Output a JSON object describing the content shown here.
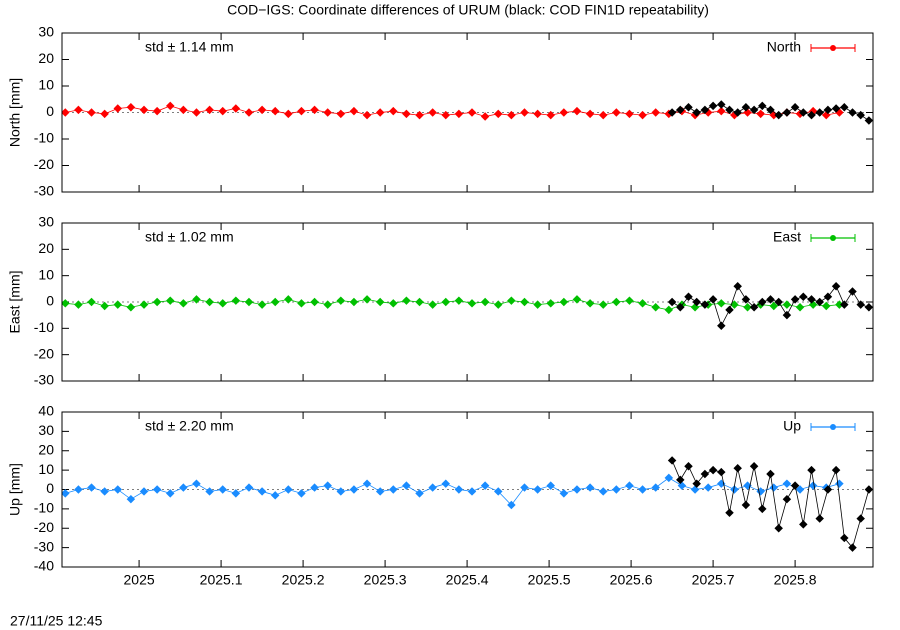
{
  "title": "COD−IGS: Coordinate differences of URUM (black: COD FIN1D repeatability)",
  "timestamp": "27/11/25 12:45",
  "chart_data": [
    {
      "type": "line",
      "ylabel": "North [mm]",
      "annotation": "std ± 1.14 mm",
      "legend": "top-right",
      "zeroline": true,
      "xlim": [
        2024.906,
        2025.895
      ],
      "xticks": [
        2025,
        2025.1,
        2025.2,
        2025.3,
        2025.4,
        2025.5,
        2025.6,
        2025.7,
        2025.8
      ],
      "ylim": [
        -30,
        30
      ],
      "yticks": [
        -30,
        -20,
        -10,
        0,
        10,
        20,
        30
      ],
      "series": [
        {
          "name": "North",
          "color": "#ff0000",
          "x": [
            2024.91,
            2024.926,
            2024.942,
            2024.958,
            2024.974,
            2024.99,
            2025.006,
            2025.022,
            2025.038,
            2025.054,
            2025.07,
            2025.086,
            2025.102,
            2025.118,
            2025.134,
            2025.15,
            2025.166,
            2025.182,
            2025.198,
            2025.214,
            2025.23,
            2025.246,
            2025.262,
            2025.278,
            2025.294,
            2025.31,
            2025.326,
            2025.342,
            2025.358,
            2025.374,
            2025.39,
            2025.406,
            2025.422,
            2025.438,
            2025.454,
            2025.47,
            2025.486,
            2025.502,
            2025.518,
            2025.534,
            2025.55,
            2025.566,
            2025.582,
            2025.598,
            2025.614,
            2025.63,
            2025.646,
            2025.662,
            2025.678,
            2025.694,
            2025.71,
            2025.726,
            2025.742,
            2025.758,
            2025.774,
            2025.79,
            2025.806,
            2025.822,
            2025.838,
            2025.854
          ],
          "values": [
            0,
            1,
            0,
            -0.5,
            1.5,
            2,
            1,
            0.5,
            2.5,
            1,
            0,
            1,
            0.5,
            1.5,
            0,
            1,
            0.5,
            -0.5,
            0.5,
            1,
            0,
            -0.5,
            0.5,
            -1,
            0,
            0.5,
            -0.5,
            -1,
            0,
            -1,
            -0.5,
            0,
            -1.5,
            -0.5,
            -1,
            0,
            -0.5,
            -1,
            0,
            0.5,
            -0.5,
            -1,
            0,
            -0.5,
            -1,
            0,
            -0.5,
            0.5,
            -1,
            0,
            0.5,
            -1,
            0,
            -0.5,
            -1,
            0,
            -0.5,
            0.5,
            -1,
            0
          ]
        },
        {
          "color": "#000000",
          "x": [
            2025.65,
            2025.66,
            2025.67,
            2025.68,
            2025.69,
            2025.7,
            2025.71,
            2025.72,
            2025.73,
            2025.74,
            2025.75,
            2025.76,
            2025.77,
            2025.78,
            2025.79,
            2025.8,
            2025.81,
            2025.82,
            2025.83,
            2025.84,
            2025.85,
            2025.86,
            2025.87,
            2025.88,
            2025.89
          ],
          "values": [
            0,
            1,
            2,
            0,
            1,
            2.5,
            3,
            1,
            0,
            2,
            1,
            2.5,
            1,
            -1,
            0,
            2,
            0,
            -1,
            0,
            1,
            1.5,
            2,
            0,
            -1,
            -3
          ]
        }
      ]
    },
    {
      "type": "line",
      "ylabel": "East [mm]",
      "annotation": "std ± 1.02 mm",
      "legend": "top-right",
      "zeroline": true,
      "xlim": [
        2024.906,
        2025.895
      ],
      "xticks": [
        2025,
        2025.1,
        2025.2,
        2025.3,
        2025.4,
        2025.5,
        2025.6,
        2025.7,
        2025.8
      ],
      "ylim": [
        -30,
        30
      ],
      "yticks": [
        -30,
        -20,
        -10,
        0,
        10,
        20,
        30
      ],
      "series": [
        {
          "name": "East",
          "color": "#00c000",
          "x": [
            2024.91,
            2024.926,
            2024.942,
            2024.958,
            2024.974,
            2024.99,
            2025.006,
            2025.022,
            2025.038,
            2025.054,
            2025.07,
            2025.086,
            2025.102,
            2025.118,
            2025.134,
            2025.15,
            2025.166,
            2025.182,
            2025.198,
            2025.214,
            2025.23,
            2025.246,
            2025.262,
            2025.278,
            2025.294,
            2025.31,
            2025.326,
            2025.342,
            2025.358,
            2025.374,
            2025.39,
            2025.406,
            2025.422,
            2025.438,
            2025.454,
            2025.47,
            2025.486,
            2025.502,
            2025.518,
            2025.534,
            2025.55,
            2025.566,
            2025.582,
            2025.598,
            2025.614,
            2025.63,
            2025.646,
            2025.662,
            2025.678,
            2025.694,
            2025.71,
            2025.726,
            2025.742,
            2025.758,
            2025.774,
            2025.79,
            2025.806,
            2025.822,
            2025.838,
            2025.854
          ],
          "values": [
            -0.5,
            -1,
            0,
            -1.5,
            -1,
            -2,
            -1,
            0,
            0.5,
            -0.5,
            1,
            0,
            -0.5,
            0.5,
            0,
            -1,
            0,
            1,
            -0.5,
            0,
            -1,
            0.5,
            0,
            1,
            0,
            -0.5,
            0.5,
            0,
            -1,
            0,
            0.5,
            -0.5,
            0,
            -1,
            0.5,
            0,
            -1,
            -0.5,
            0,
            1,
            -0.5,
            -1,
            0,
            0.5,
            -0.5,
            -2,
            -3,
            -1,
            -2,
            -1,
            -0.5,
            -1,
            -2,
            -1,
            -1.5,
            -1,
            -2,
            -1,
            -1.5,
            -1
          ]
        },
        {
          "color": "#000000",
          "x": [
            2025.65,
            2025.66,
            2025.67,
            2025.68,
            2025.69,
            2025.7,
            2025.71,
            2025.72,
            2025.73,
            2025.74,
            2025.75,
            2025.76,
            2025.77,
            2025.78,
            2025.79,
            2025.8,
            2025.81,
            2025.82,
            2025.83,
            2025.84,
            2025.85,
            2025.86,
            2025.87,
            2025.88,
            2025.89
          ],
          "values": [
            0,
            -2,
            2,
            0,
            -1,
            1,
            -9,
            -3,
            6,
            1,
            -2,
            0,
            1,
            0,
            -5,
            1,
            2,
            1,
            0,
            2,
            6,
            -1,
            4,
            -1,
            -2
          ]
        }
      ]
    },
    {
      "type": "line",
      "ylabel": "Up [mm]",
      "annotation": "std ± 2.20 mm",
      "legend": "top-right",
      "zeroline": true,
      "xlim": [
        2024.906,
        2025.895
      ],
      "xticks": [
        2025,
        2025.1,
        2025.2,
        2025.3,
        2025.4,
        2025.5,
        2025.6,
        2025.7,
        2025.8
      ],
      "ylim": [
        -40,
        40
      ],
      "yticks": [
        -40,
        -30,
        -20,
        -10,
        0,
        10,
        20,
        30,
        40
      ],
      "series": [
        {
          "name": "Up",
          "color": "#1a8cff",
          "x": [
            2024.91,
            2024.926,
            2024.942,
            2024.958,
            2024.974,
            2024.99,
            2025.006,
            2025.022,
            2025.038,
            2025.054,
            2025.07,
            2025.086,
            2025.102,
            2025.118,
            2025.134,
            2025.15,
            2025.166,
            2025.182,
            2025.198,
            2025.214,
            2025.23,
            2025.246,
            2025.262,
            2025.278,
            2025.294,
            2025.31,
            2025.326,
            2025.342,
            2025.358,
            2025.374,
            2025.39,
            2025.406,
            2025.422,
            2025.438,
            2025.454,
            2025.47,
            2025.486,
            2025.502,
            2025.518,
            2025.534,
            2025.55,
            2025.566,
            2025.582,
            2025.598,
            2025.614,
            2025.63,
            2025.646,
            2025.662,
            2025.678,
            2025.694,
            2025.71,
            2025.726,
            2025.742,
            2025.758,
            2025.774,
            2025.79,
            2025.806,
            2025.822,
            2025.838,
            2025.854
          ],
          "values": [
            -2,
            0,
            1,
            -1,
            0,
            -5,
            -1,
            0,
            -2,
            1,
            3,
            -1,
            0,
            -2,
            1,
            -1,
            -3,
            0,
            -2,
            1,
            2,
            -1,
            0,
            3,
            -1,
            0,
            2,
            -2,
            1,
            3,
            0,
            -1,
            2,
            -1,
            -8,
            1,
            0,
            2,
            -2,
            0,
            1,
            -1,
            0,
            2,
            0,
            1,
            6,
            2,
            0,
            1,
            3,
            0,
            2,
            -1,
            1,
            3,
            0,
            2,
            1,
            3
          ]
        },
        {
          "color": "#000000",
          "x": [
            2025.65,
            2025.66,
            2025.67,
            2025.68,
            2025.69,
            2025.7,
            2025.71,
            2025.72,
            2025.73,
            2025.74,
            2025.75,
            2025.76,
            2025.77,
            2025.78,
            2025.79,
            2025.8,
            2025.81,
            2025.82,
            2025.83,
            2025.84,
            2025.85,
            2025.86,
            2025.87,
            2025.88,
            2025.89
          ],
          "values": [
            15,
            5,
            12,
            3,
            8,
            10,
            9,
            -12,
            11,
            -8,
            12,
            -10,
            8,
            -20,
            -5,
            2,
            -18,
            10,
            -15,
            0,
            10,
            -25,
            -30,
            -15,
            0
          ]
        }
      ]
    }
  ]
}
